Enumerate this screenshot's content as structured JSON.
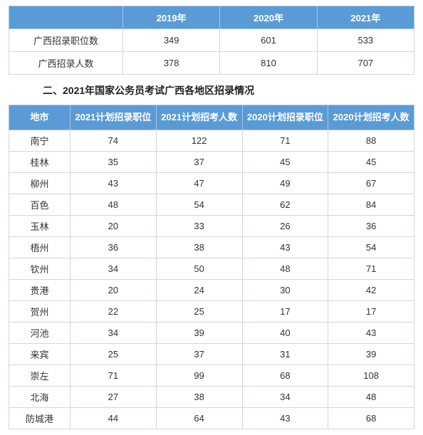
{
  "table1": {
    "header_bg": "#5b9bd5",
    "header_fg": "#ffffff",
    "border_color": "#d0d7e0",
    "text_color": "#333333",
    "columns": [
      "",
      "2019年",
      "2020年",
      "2021年"
    ],
    "rows": [
      {
        "label": "广西招录职位数",
        "v2019": "349",
        "v2020": "601",
        "v2021": "533"
      },
      {
        "label": "广西招录人数",
        "v2019": "378",
        "v2020": "810",
        "v2021": "707"
      }
    ]
  },
  "section_title": "二、2021年国家公务员考试广西各地区招录情况",
  "table2": {
    "header_bg": "#5b9bd5",
    "header_fg": "#ffffff",
    "border_color": "#d0d7e0",
    "text_color": "#333333",
    "columns": [
      "地市",
      "2021计划招录职位",
      "2021计划招考人数",
      "2020计划招录职位",
      "2020计划招考人数"
    ],
    "rows": [
      {
        "city": "南宁",
        "p21": "74",
        "n21": "122",
        "p20": "71",
        "n20": "88"
      },
      {
        "city": "桂林",
        "p21": "35",
        "n21": "37",
        "p20": "45",
        "n20": "45"
      },
      {
        "city": "柳州",
        "p21": "43",
        "n21": "47",
        "p20": "49",
        "n20": "67"
      },
      {
        "city": "百色",
        "p21": "48",
        "n21": "54",
        "p20": "62",
        "n20": "84"
      },
      {
        "city": "玉林",
        "p21": "20",
        "n21": "33",
        "p20": "26",
        "n20": "36"
      },
      {
        "city": "梧州",
        "p21": "36",
        "n21": "38",
        "p20": "43",
        "n20": "54"
      },
      {
        "city": "钦州",
        "p21": "34",
        "n21": "50",
        "p20": "48",
        "n20": "71"
      },
      {
        "city": "贵港",
        "p21": "20",
        "n21": "24",
        "p20": "30",
        "n20": "42"
      },
      {
        "city": "贺州",
        "p21": "22",
        "n21": "25",
        "p20": "17",
        "n20": "17"
      },
      {
        "city": "河池",
        "p21": "34",
        "n21": "39",
        "p20": "40",
        "n20": "43"
      },
      {
        "city": "来宾",
        "p21": "25",
        "n21": "37",
        "p20": "31",
        "n20": "39"
      },
      {
        "city": "崇左",
        "p21": "71",
        "n21": "99",
        "p20": "68",
        "n20": "108"
      },
      {
        "city": "北海",
        "p21": "27",
        "n21": "38",
        "p20": "34",
        "n20": "48"
      },
      {
        "city": "防城港",
        "p21": "44",
        "n21": "64",
        "p20": "43",
        "n20": "68"
      }
    ]
  }
}
